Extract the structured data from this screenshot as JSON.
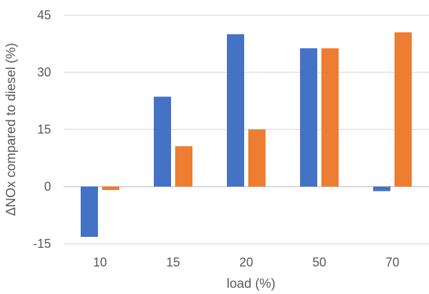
{
  "chart_data": {
    "type": "bar",
    "categories": [
      "10",
      "15",
      "20",
      "50",
      "70"
    ],
    "series": [
      {
        "color": "#4472C4",
        "values": [
          -13.2,
          23.6,
          40.0,
          36.3,
          -1.2
        ]
      },
      {
        "color": "#ED7D31",
        "values": [
          -0.9,
          10.6,
          15.0,
          36.3,
          40.5
        ]
      }
    ],
    "xlabel": "load (%)",
    "ylabel": "ΔNOx compared to diesel (%)",
    "ylim": [
      -15,
      45
    ],
    "yticks": [
      -15,
      0,
      15,
      30,
      45
    ],
    "ytick_labels": [
      "-15",
      "0",
      "15",
      "30",
      "45"
    ],
    "grid": true,
    "legend": "none"
  }
}
